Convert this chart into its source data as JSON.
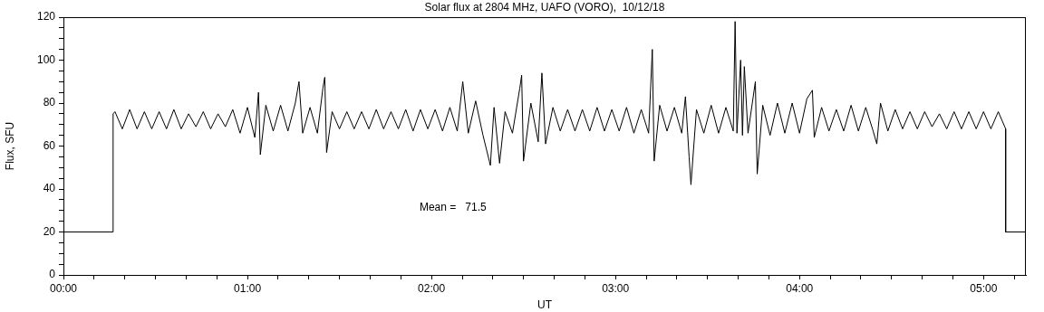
{
  "chart_data": {
    "type": "line",
    "title": "Solar flux at 2804 MHz, UAFO (VORO),  10/12/18",
    "xlabel": "UT",
    "ylabel": "Flux, SFU",
    "annotations": [
      "Mean =   71.5"
    ],
    "xlim": [
      0,
      5.23
    ],
    "ylim": [
      0,
      120
    ],
    "xticks": [
      {
        "value": 0,
        "label": "00:00"
      },
      {
        "value": 0.167,
        "label": null
      },
      {
        "value": 0.333,
        "label": null
      },
      {
        "value": 0.5,
        "label": null
      },
      {
        "value": 0.667,
        "label": null
      },
      {
        "value": 0.833,
        "label": null
      },
      {
        "value": 1,
        "label": "01:00"
      },
      {
        "value": 1.167,
        "label": null
      },
      {
        "value": 1.333,
        "label": null
      },
      {
        "value": 1.5,
        "label": null
      },
      {
        "value": 1.667,
        "label": null
      },
      {
        "value": 1.833,
        "label": null
      },
      {
        "value": 2,
        "label": "02:00"
      },
      {
        "value": 2.167,
        "label": null
      },
      {
        "value": 2.333,
        "label": null
      },
      {
        "value": 2.5,
        "label": null
      },
      {
        "value": 2.667,
        "label": null
      },
      {
        "value": 2.833,
        "label": null
      },
      {
        "value": 3,
        "label": "03:00"
      },
      {
        "value": 3.167,
        "label": null
      },
      {
        "value": 3.333,
        "label": null
      },
      {
        "value": 3.5,
        "label": null
      },
      {
        "value": 3.667,
        "label": null
      },
      {
        "value": 3.833,
        "label": null
      },
      {
        "value": 4,
        "label": "04:00"
      },
      {
        "value": 4.167,
        "label": null
      },
      {
        "value": 4.333,
        "label": null
      },
      {
        "value": 4.5,
        "label": null
      },
      {
        "value": 4.667,
        "label": null
      },
      {
        "value": 4.833,
        "label": null
      },
      {
        "value": 5,
        "label": "05:00"
      },
      {
        "value": 5.167,
        "label": null
      }
    ],
    "yticks": [
      0,
      {
        "value": 5,
        "label": null
      },
      {
        "value": 10,
        "label": null
      },
      {
        "value": 15,
        "label": null
      },
      20,
      {
        "value": 25,
        "label": null
      },
      {
        "value": 30,
        "label": null
      },
      {
        "value": 35,
        "label": null
      },
      40,
      {
        "value": 45,
        "label": null
      },
      {
        "value": 50,
        "label": null
      },
      {
        "value": 55,
        "label": null
      },
      60,
      {
        "value": 65,
        "label": null
      },
      {
        "value": 70,
        "label": null
      },
      {
        "value": 75,
        "label": null
      },
      80,
      {
        "value": 85,
        "label": null
      },
      {
        "value": 90,
        "label": null
      },
      {
        "value": 95,
        "label": null
      },
      100,
      {
        "value": 105,
        "label": null
      },
      {
        "value": 110,
        "label": null
      },
      {
        "value": 115,
        "label": null
      },
      120
    ],
    "series": [
      {
        "color": "#000000",
        "x": [
          0,
          0.27,
          0.27,
          0.28,
          0.32,
          0.36,
          0.4,
          0.44,
          0.48,
          0.52,
          0.56,
          0.6,
          0.64,
          0.68,
          0.72,
          0.76,
          0.8,
          0.84,
          0.88,
          0.92,
          0.96,
          1.0,
          1.04,
          1.06,
          1.07,
          1.1,
          1.14,
          1.18,
          1.22,
          1.26,
          1.28,
          1.3,
          1.34,
          1.38,
          1.41,
          1.42,
          1.43,
          1.46,
          1.5,
          1.54,
          1.58,
          1.62,
          1.66,
          1.7,
          1.74,
          1.78,
          1.82,
          1.86,
          1.9,
          1.94,
          1.98,
          2.02,
          2.06,
          2.1,
          2.14,
          2.17,
          2.2,
          2.24,
          2.28,
          2.32,
          2.34,
          2.37,
          2.4,
          2.44,
          2.48,
          2.49,
          2.5,
          2.54,
          2.58,
          2.6,
          2.62,
          2.66,
          2.7,
          2.74,
          2.78,
          2.82,
          2.86,
          2.9,
          2.94,
          2.98,
          3.02,
          3.06,
          3.1,
          3.14,
          3.18,
          3.2,
          3.21,
          3.24,
          3.28,
          3.32,
          3.36,
          3.38,
          3.4,
          3.41,
          3.44,
          3.48,
          3.52,
          3.56,
          3.6,
          3.64,
          3.65,
          3.66,
          3.68,
          3.69,
          3.7,
          3.72,
          3.76,
          3.77,
          3.8,
          3.84,
          3.88,
          3.92,
          3.96,
          4.0,
          4.04,
          4.07,
          4.08,
          4.12,
          4.16,
          4.2,
          4.24,
          4.28,
          4.32,
          4.36,
          4.4,
          4.42,
          4.44,
          4.48,
          4.52,
          4.56,
          4.6,
          4.64,
          4.68,
          4.72,
          4.76,
          4.8,
          4.84,
          4.88,
          4.92,
          4.96,
          5.0,
          5.04,
          5.08,
          5.12,
          5.12,
          5.23
        ],
        "values": [
          20,
          20,
          75,
          76,
          68,
          77,
          68,
          76,
          68,
          76,
          68,
          77,
          68,
          75,
          69,
          76,
          68,
          75,
          69,
          77,
          66,
          78,
          64,
          85,
          56,
          79,
          67,
          79,
          67,
          80,
          90,
          66,
          78,
          66,
          87,
          92,
          57,
          76,
          68,
          76,
          68,
          76,
          68,
          77,
          68,
          76,
          68,
          77,
          67,
          77,
          68,
          77,
          67,
          78,
          67,
          90,
          66,
          81,
          65,
          51,
          78,
          52,
          76,
          66,
          87,
          93,
          53,
          80,
          62,
          94,
          61,
          78,
          67,
          77,
          67,
          77,
          67,
          78,
          67,
          77,
          67,
          78,
          66,
          77,
          66,
          105,
          53,
          79,
          67,
          78,
          66,
          83,
          55,
          42,
          77,
          66,
          79,
          66,
          78,
          67,
          118,
          66,
          100,
          65,
          97,
          66,
          90,
          47,
          79,
          65,
          80,
          66,
          80,
          66,
          82,
          86,
          64,
          78,
          67,
          77,
          67,
          79,
          67,
          78,
          67,
          61,
          80,
          67,
          77,
          68,
          76,
          68,
          76,
          69,
          75,
          68,
          76,
          68,
          76,
          68,
          76,
          68,
          76,
          68,
          20,
          20
        ]
      }
    ]
  }
}
